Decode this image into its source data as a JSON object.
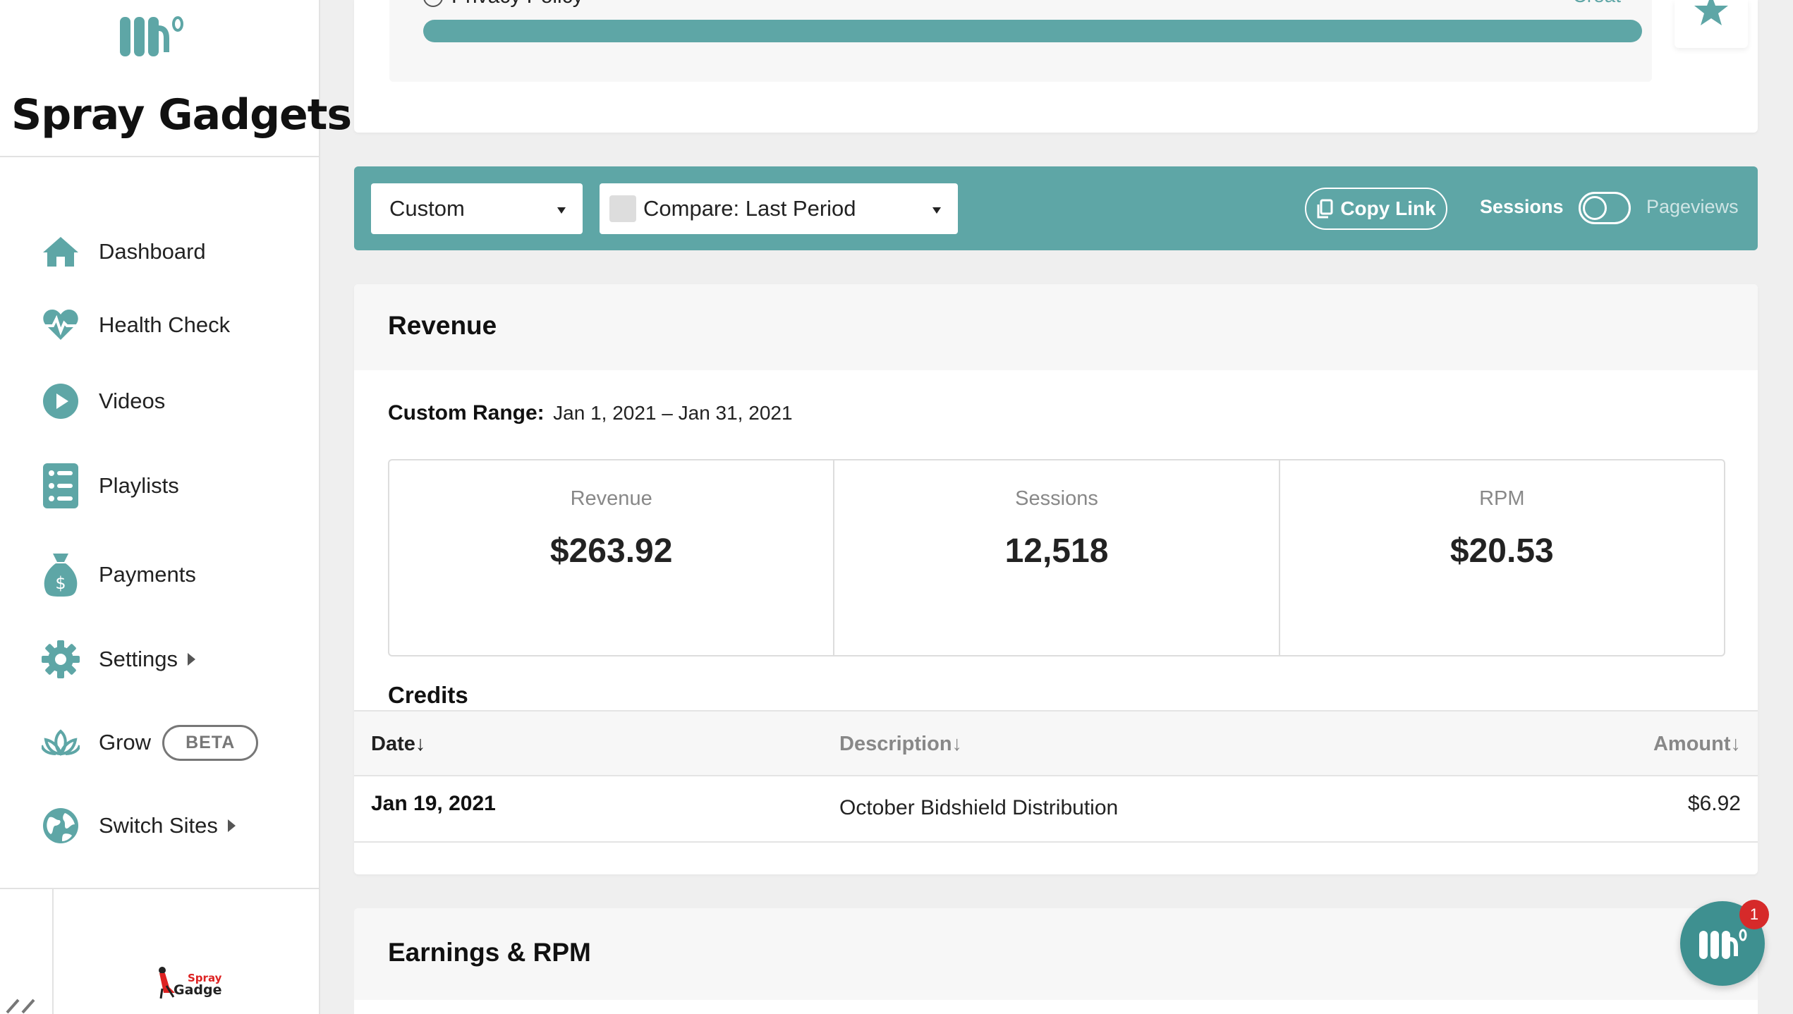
{
  "brand": {
    "site_name": "Spray Gadgets",
    "accent_color": "#5ea6a6",
    "logo_icon": "mediavine-logo-icon"
  },
  "sidebar": {
    "items": [
      {
        "label": "Dashboard",
        "icon": "home-icon"
      },
      {
        "label": "Health Check",
        "icon": "heart-pulse-icon"
      },
      {
        "label": "Videos",
        "icon": "play-circle-icon"
      },
      {
        "label": "Playlists",
        "icon": "list-icon"
      },
      {
        "label": "Payments",
        "icon": "money-bag-icon"
      },
      {
        "label": "Settings",
        "icon": "gear-icon"
      },
      {
        "label": "Grow",
        "icon": "lotus-icon",
        "badge": "BETA"
      },
      {
        "label": "Switch Sites",
        "icon": "globe-icon"
      }
    ]
  },
  "top_card": {
    "privacy_label": "Privacy Policy",
    "create_link": "Creat",
    "progress": 1.0
  },
  "filter_bar": {
    "range_select": "Custom",
    "compare_select": "Compare: Last Period",
    "copy_link": "Copy Link",
    "sessions_label": "Sessions",
    "pageviews_label": "Pageviews"
  },
  "revenue": {
    "title": "Revenue",
    "range_label": "Custom Range:",
    "range_value": "Jan 1, 2021 – Jan 31, 2021",
    "stats": [
      {
        "label": "Revenue",
        "value": "$263.92"
      },
      {
        "label": "Sessions",
        "value": "12,518"
      },
      {
        "label": "RPM",
        "value": "$20.53"
      }
    ],
    "credits_title": "Credits",
    "table": {
      "headers": {
        "date": "Date↓",
        "description": "Description↓",
        "amount": "Amount↓"
      },
      "rows": [
        {
          "date": "Jan 19, 2021",
          "description": "October Bidshield Distribution",
          "amount": "$6.92"
        }
      ]
    }
  },
  "earnings": {
    "title": "Earnings & RPM"
  },
  "chat": {
    "badge_count": "1"
  },
  "bottom_logo": {
    "line1": "Spray",
    "line2": "Gadgets"
  }
}
